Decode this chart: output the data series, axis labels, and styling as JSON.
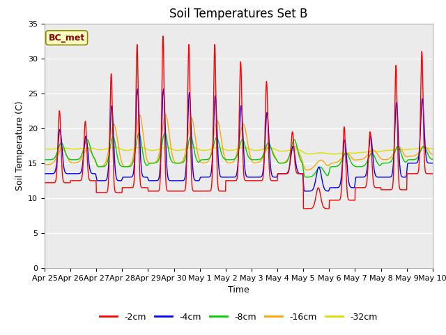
{
  "title": "Soil Temperatures Set B",
  "xlabel": "Time",
  "ylabel": "Soil Temperature (C)",
  "annotation": "BC_met",
  "ylim": [
    0,
    35
  ],
  "yticks": [
    0,
    5,
    10,
    15,
    20,
    25,
    30,
    35
  ],
  "colors": {
    "-2cm": "#FF0000",
    "-4cm": "#0000FF",
    "-8cm": "#00CC00",
    "-16cm": "#FFA500",
    "-32cm": "#DDDD00"
  },
  "legend_labels": [
    "-2cm",
    "-4cm",
    "-8cm",
    "-16cm",
    "-32cm"
  ],
  "plot_bg_color": "#EBEBEB",
  "title_fontsize": 12,
  "axis_label_fontsize": 9,
  "tick_fontsize": 8,
  "date_labels": [
    "Apr 25",
    "Apr 26",
    "Apr 27",
    "Apr 28",
    "Apr 29",
    "Apr 30",
    "May 1",
    "May 2",
    "May 3",
    "May 4",
    "May 5",
    "May 6",
    "May 7",
    "May 8",
    "May 9",
    "May 10"
  ],
  "num_days": 15
}
